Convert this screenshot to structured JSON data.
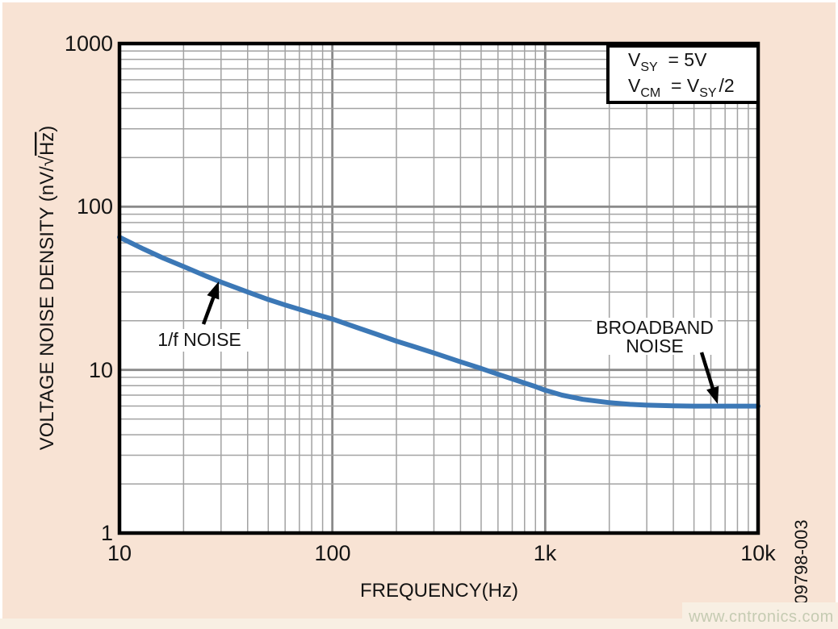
{
  "figure": {
    "figure_code": "09798-003",
    "watermark": "www.cntronics.com"
  },
  "legend": {
    "l1a": "V",
    "l1b": "SY",
    "l1c": "  = 5V",
    "l2a": "V",
    "l2b": "CM",
    "l2c": "  = V",
    "l2d": "SY",
    "l2e": "/2"
  },
  "chart_data": {
    "type": "line",
    "title": "",
    "xlabel": "FREQUENCY(Hz)",
    "ylabel": "VOLTAGE NOISE DENSITY (nV/√Hz)",
    "ylabel_pre": "VOLTAGE NOISE DENSITY (nV/√",
    "ylabel_sqrt_arg": "Hz",
    "ylabel_close": ")",
    "x_scale": "log",
    "y_scale": "log",
    "xlim": [
      10,
      10000
    ],
    "ylim": [
      1,
      1000
    ],
    "x_ticks": [
      10,
      100,
      1000,
      10000
    ],
    "x_tick_labels": [
      "10",
      "100",
      "1k",
      "10k"
    ],
    "y_ticks": [
      1000,
      100,
      10,
      1
    ],
    "y_tick_labels": [
      "1000",
      "100",
      "10",
      "1"
    ],
    "grid": "log-log, minor gridlines 2-9 each decade on both axes, major lines at decades",
    "legend_position": "top-right inside plot, boxed",
    "conditions": [
      "VSY = 5V",
      "VCM = VSY/2"
    ],
    "series": [
      {
        "name": "voltage noise density",
        "color": "#3c78b6",
        "points": [
          [
            10,
            65
          ],
          [
            13,
            55
          ],
          [
            16,
            48.5
          ],
          [
            20,
            43
          ],
          [
            25,
            38
          ],
          [
            30,
            34.5
          ],
          [
            40,
            30
          ],
          [
            50,
            27
          ],
          [
            60,
            25
          ],
          [
            80,
            22.3
          ],
          [
            100,
            20.5
          ],
          [
            130,
            18.2
          ],
          [
            160,
            16.6
          ],
          [
            200,
            15
          ],
          [
            250,
            13.7
          ],
          [
            300,
            12.7
          ],
          [
            400,
            11.2
          ],
          [
            500,
            10.2
          ],
          [
            600,
            9.4
          ],
          [
            700,
            8.8
          ],
          [
            800,
            8.3
          ],
          [
            900,
            7.9
          ],
          [
            1000,
            7.5
          ],
          [
            1200,
            7.0
          ],
          [
            1500,
            6.6
          ],
          [
            2000,
            6.3
          ],
          [
            2500,
            6.15
          ],
          [
            3000,
            6.08
          ],
          [
            4000,
            6.02
          ],
          [
            5000,
            6.0
          ],
          [
            7000,
            6.0
          ],
          [
            10000,
            6.0
          ]
        ]
      }
    ],
    "annotations": [
      {
        "lines": [
          "1/f NOISE"
        ],
        "points_to": [
          30,
          34
        ],
        "arrow": "up-right to curve"
      },
      {
        "lines": [
          "BROADBAND",
          "NOISE"
        ],
        "points_to": [
          5000,
          6
        ],
        "arrow": "down-right to curve"
      }
    ]
  }
}
